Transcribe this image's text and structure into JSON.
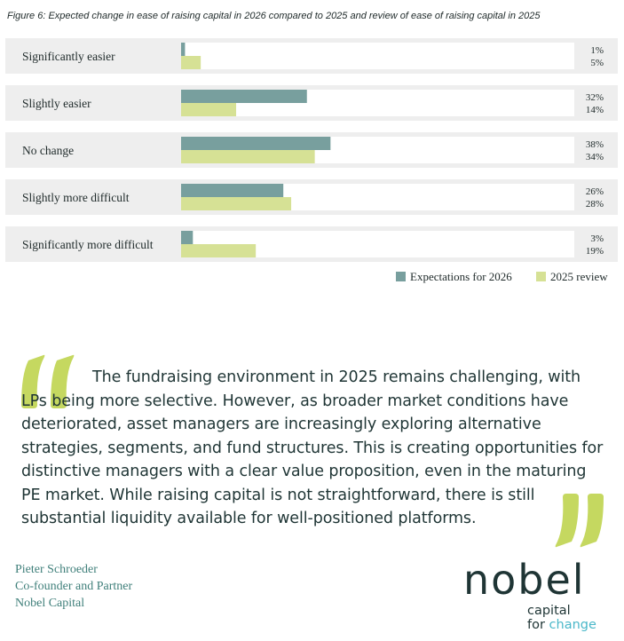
{
  "figure": {
    "title": "Figure 6: Expected change in ease of raising capital in 2026 compared to 2025 and review of ease of raising capital in 2025"
  },
  "chart_data": {
    "type": "bar",
    "orientation": "horizontal",
    "title": "Figure 6: Expected change in ease of raising capital in 2026 compared to 2025 and review of ease of raising capital in 2025",
    "categories": [
      "Significantly easier",
      "Slightly easier",
      "No change",
      "Slightly more difficult",
      "Significantly more difficult"
    ],
    "series": [
      {
        "name": "Expectations for 2026",
        "color": "#789f9e",
        "values": [
          1,
          32,
          38,
          26,
          3
        ]
      },
      {
        "name": "2025 review",
        "color": "#d6e195",
        "values": [
          5,
          14,
          34,
          28,
          19
        ]
      }
    ],
    "value_labels": {
      "Expectations for 2026": [
        "1%",
        "32%",
        "38%",
        "26%",
        "3%"
      ],
      "2025 review": [
        "5%",
        "14%",
        "34%",
        "28%",
        "19%"
      ]
    },
    "unit": "%",
    "xlim": [
      0,
      100
    ],
    "legend": "bottom-right",
    "grid": false
  },
  "quote": {
    "text_first": "The fundraising environment in 2025 remains challenging, with",
    "text_rest": "LPs being more selective. However, as broader market conditions have deteriorated, asset managers are increasingly exploring alternative strategies, segments, and fund structures. This is creating opportunities for distinctive managers with a clear value proposition, even in the maturing PE market. While raising capital is not straightforward, there is still substantial liquidity available for well-positioned platforms.",
    "mark_color": "#c5d860"
  },
  "author": {
    "name": "Pieter Schroeder",
    "role": "Co-founder and Partner",
    "company": "Nobel Capital"
  },
  "logo": {
    "word": "nobel",
    "tag_line1": "capital",
    "tag_for": "for ",
    "tag_change": "change",
    "accent_color": "#4bb8c9"
  }
}
